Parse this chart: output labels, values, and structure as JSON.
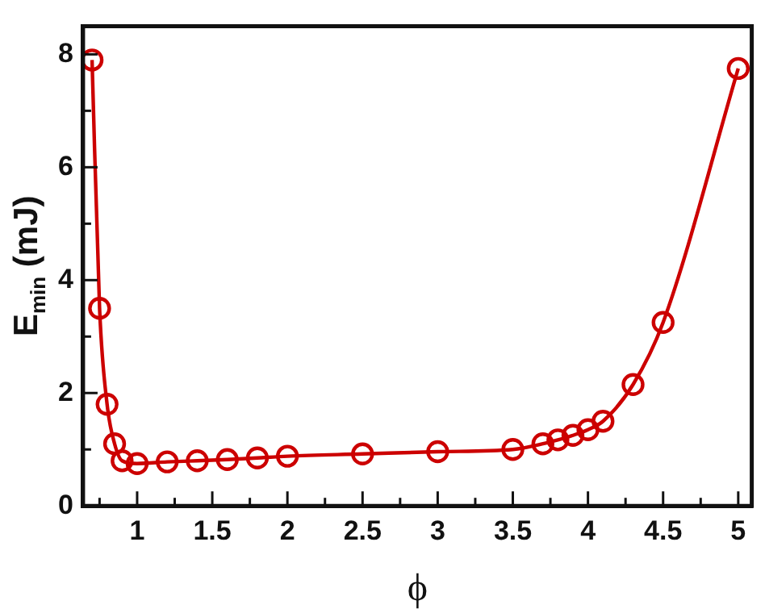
{
  "chart_data": {
    "type": "line",
    "xlabel": "ϕ",
    "ylabel": "E$_{min}$ (mJ)",
    "x": [
      0.7,
      0.75,
      0.8,
      0.85,
      0.9,
      1.0,
      1.2,
      1.4,
      1.6,
      1.8,
      2.0,
      2.5,
      3.0,
      3.5,
      3.7,
      3.8,
      3.9,
      4.0,
      4.1,
      4.3,
      4.5,
      5.0
    ],
    "series": [
      {
        "color": "#cc0000",
        "values": [
          7.9,
          3.5,
          1.8,
          1.1,
          0.8,
          0.75,
          0.78,
          0.8,
          0.82,
          0.85,
          0.88,
          0.92,
          0.96,
          1.0,
          1.1,
          1.17,
          1.25,
          1.35,
          1.5,
          2.15,
          3.25,
          7.75
        ]
      }
    ],
    "xlim": [
      0.64,
      5.09
    ],
    "ylim": [
      0,
      8.5
    ],
    "xticks": [
      {
        "value": 0.75,
        "label": null
      },
      1,
      {
        "value": 1.25,
        "label": null
      },
      1.5,
      {
        "value": 1.75,
        "label": null
      },
      2,
      {
        "value": 2.25,
        "label": null
      },
      2.5,
      {
        "value": 2.75,
        "label": null
      },
      3,
      {
        "value": 3.25,
        "label": null
      },
      3.5,
      {
        "value": 3.75,
        "label": null
      },
      4,
      {
        "value": 4.25,
        "label": null
      },
      4.5,
      {
        "value": 4.75,
        "label": null
      },
      5
    ],
    "yticks": [
      0,
      {
        "value": 1,
        "label": null
      },
      2,
      {
        "value": 3,
        "label": null
      },
      4,
      {
        "value": 5,
        "label": null
      },
      6,
      {
        "value": 7,
        "label": null
      },
      8
    ],
    "marker": "circle",
    "line_style": "solid",
    "grid": false,
    "legend": false
  }
}
